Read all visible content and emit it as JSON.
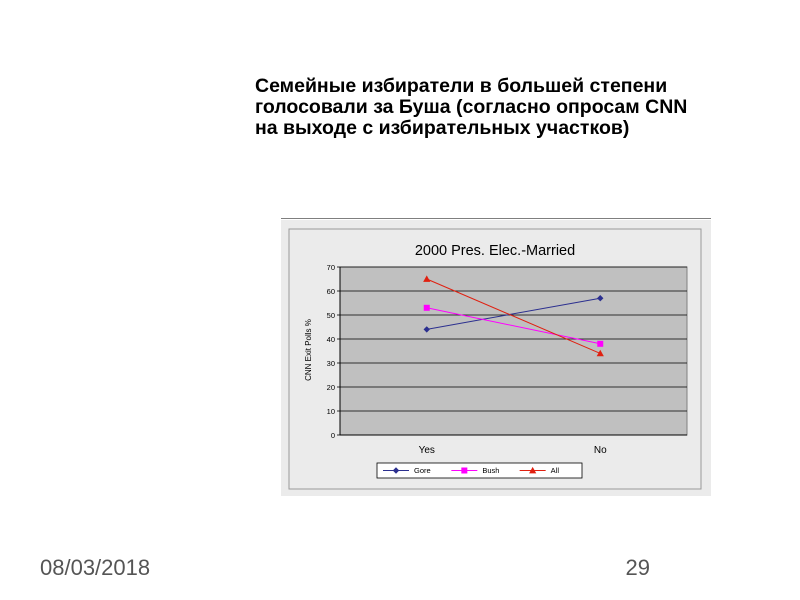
{
  "slide": {
    "title_lines": [
      "Семейные избиратели в большей степени",
      "голосовали за Буша (согласно опросам CNN",
      "на выходе с избирательных участков)"
    ],
    "date": "08/03/2018",
    "page_number": "29"
  },
  "chart_data": {
    "type": "line",
    "title": "2000 Pres. Elec.-Married",
    "ylabel": "CNN Exit Polls %",
    "xlabel": "",
    "categories": [
      "Yes",
      "No"
    ],
    "ylim": [
      0,
      70
    ],
    "yticks": [
      "0",
      "10",
      "20",
      "30",
      "40",
      "50",
      "60",
      "70"
    ],
    "grid": true,
    "legend_position": "bottom",
    "series": [
      {
        "name": "Gore",
        "values": [
          44,
          57
        ],
        "color": "#2b2f8f",
        "marker": "diamond"
      },
      {
        "name": "Bush",
        "values": [
          53,
          38
        ],
        "color": "#ff00ff",
        "marker": "square"
      },
      {
        "name": "All",
        "values": [
          65,
          34
        ],
        "color": "#e02010",
        "marker": "triangle"
      }
    ],
    "plot_background": "#c0c0c0",
    "frame_background": "#ebebeb"
  }
}
